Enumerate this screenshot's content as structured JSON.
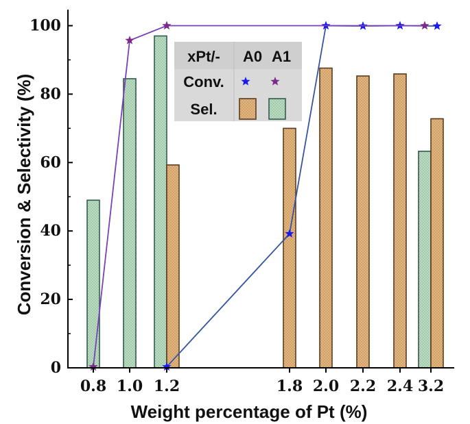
{
  "chart_data": {
    "type": "bar",
    "xlabel": "Weight percentage of Pt (%)",
    "ylabel": "Conversion & Selectivity (%)",
    "ylim": [
      0,
      105
    ],
    "yticks": [
      0,
      20,
      40,
      60,
      80,
      100
    ],
    "grid": false,
    "categories": [
      "0.8",
      "1.0",
      "1.2",
      "1.8",
      "2.0",
      "2.2",
      "2.4",
      "3.2"
    ],
    "bars": [
      {
        "series": "A1",
        "category": "0.8",
        "value": 49
      },
      {
        "series": "A1",
        "category": "1.0",
        "value": 84.5
      },
      {
        "series": "A1",
        "category": "1.2",
        "value": 97
      },
      {
        "series": "A0",
        "category": "1.2",
        "value": 59.3
      },
      {
        "series": "A0",
        "category": "1.8",
        "value": 70
      },
      {
        "series": "A0",
        "category": "2.0",
        "value": 87.6
      },
      {
        "series": "A0",
        "category": "2.2",
        "value": 85.3
      },
      {
        "series": "A0",
        "category": "2.4",
        "value": 85.9
      },
      {
        "series": "A1",
        "category": "3.2",
        "value": 63.3
      },
      {
        "series": "A0",
        "category": "3.2",
        "value": 72.8
      }
    ],
    "lines": [
      {
        "series": "A0",
        "points": [
          [
            "1.2",
            0.3
          ],
          [
            "1.8",
            39.2
          ],
          [
            "2.0",
            100
          ],
          [
            "2.2",
            99.9
          ],
          [
            "2.4",
            100
          ],
          [
            "3.2",
            99.9
          ]
        ]
      },
      {
        "series": "A1",
        "points": [
          [
            "0.8",
            0.3
          ],
          [
            "1.0",
            95.7
          ],
          [
            "1.2",
            100
          ],
          [
            "3.2",
            100
          ]
        ]
      }
    ],
    "legend": {
      "placement": "top-center",
      "header": "xPt/-",
      "columns": [
        "A0",
        "A1"
      ],
      "rows": [
        "Conv.",
        "Sel."
      ]
    }
  },
  "colors": {
    "A0_bar_fill": "#e2b57f",
    "A0_bar_edge": "#5a3b1e",
    "A1_bar_fill": "#b9dcc0",
    "A1_bar_edge": "#2f5a50",
    "A0_line": "#3355a0",
    "A0_marker": "#1a1aee",
    "A1_line": "#7a3fb8",
    "A1_marker": "#7a2a8a",
    "legend_bg": "#d9d9d9"
  }
}
